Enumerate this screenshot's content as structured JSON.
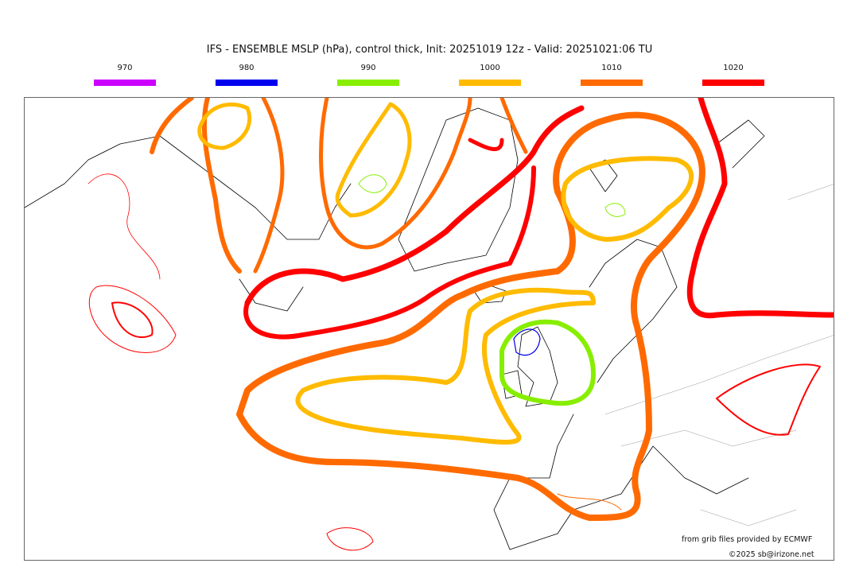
{
  "title": "IFS - ENSEMBLE MSLP (hPa), control thick, Init: 20251019 12z - Valid: 20251021:06 TU",
  "legend": [
    {
      "label": "970",
      "color": "#cc00ff"
    },
    {
      "label": "980",
      "color": "#0000ee"
    },
    {
      "label": "990",
      "color": "#88ee00"
    },
    {
      "label": "1000",
      "color": "#ffbb00"
    },
    {
      "label": "1010",
      "color": "#ff6a00"
    },
    {
      "label": "1020",
      "color": "#ff0000"
    }
  ],
  "credits": {
    "source": "from grib files provided by ECMWF",
    "copyright": "©2025 sb@irizone.net"
  }
}
